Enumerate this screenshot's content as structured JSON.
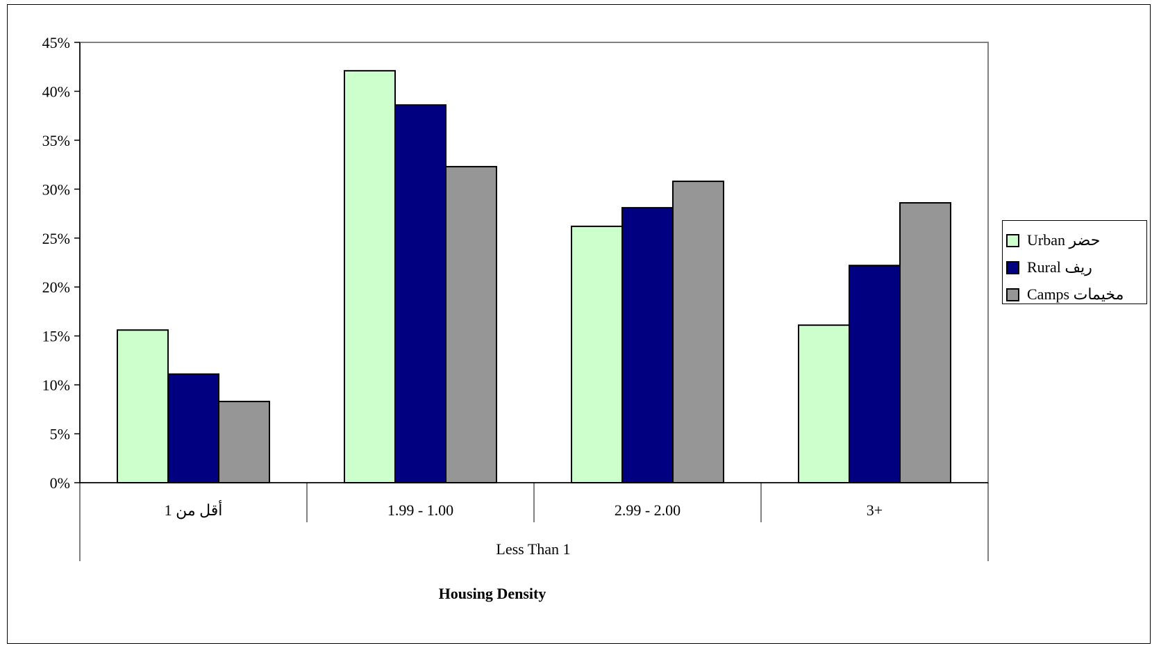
{
  "chart_data": {
    "type": "bar",
    "categories": [
      "أقل من 1",
      "1.99 - 1.00",
      "2.99 - 2.00",
      "3+"
    ],
    "category_group_label": "Less Than 1",
    "xlabel": "Housing Density",
    "ylabel": "",
    "ylim": [
      0,
      45
    ],
    "y_ticks": [
      "0%",
      "5%",
      "10%",
      "15%",
      "20%",
      "25%",
      "30%",
      "35%",
      "40%",
      "45%"
    ],
    "y_tick_values": [
      0,
      5,
      10,
      15,
      20,
      25,
      30,
      35,
      40,
      45
    ],
    "grid": false,
    "legend_position": "right",
    "series": [
      {
        "name": "Urban  حضر",
        "color": "#ccffcc",
        "values": [
          15.6,
          42.1,
          26.2,
          16.1
        ]
      },
      {
        "name": "Rural  ريف",
        "color": "#000080",
        "values": [
          11.1,
          38.6,
          28.1,
          22.2
        ]
      },
      {
        "name": "Camps  مخيمات",
        "color": "#969696",
        "values": [
          8.3,
          32.3,
          30.8,
          28.6
        ]
      }
    ]
  }
}
